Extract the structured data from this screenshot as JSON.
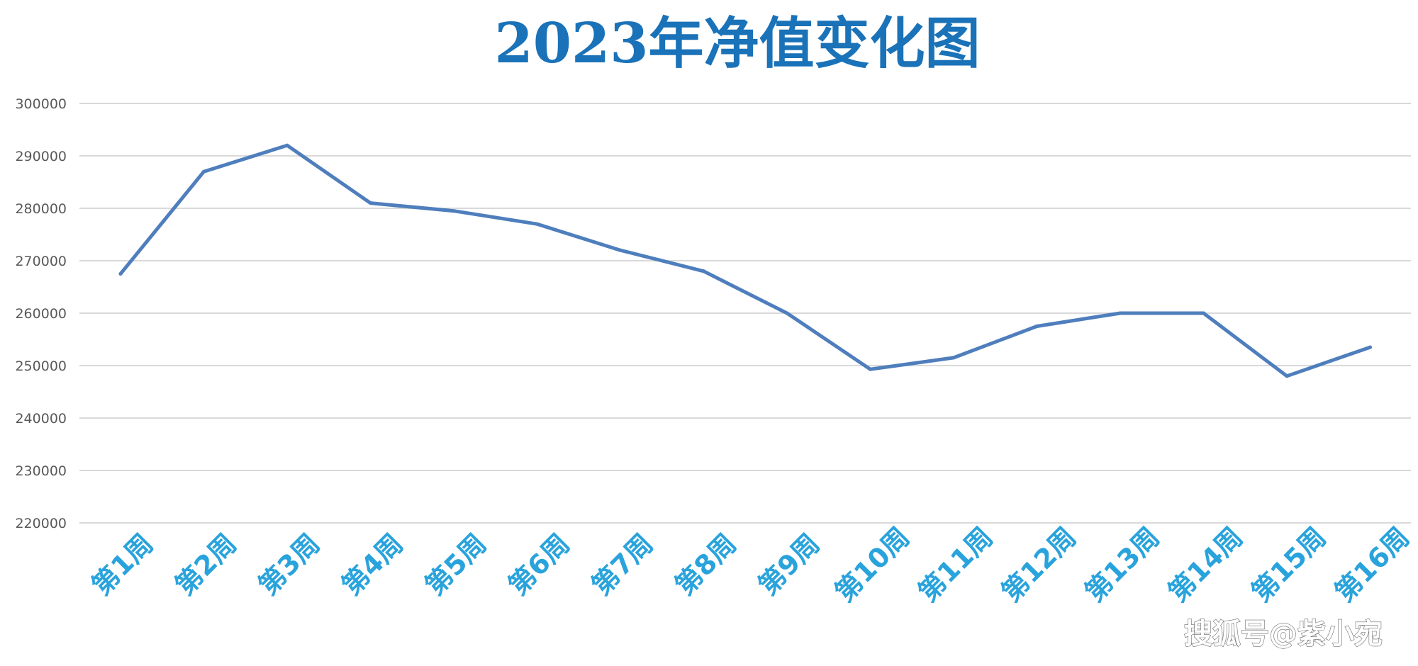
{
  "chart_data": {
    "type": "line",
    "title": "2023年净值变化图",
    "xlabel": "",
    "ylabel": "",
    "categories": [
      "第1周",
      "第2周",
      "第3周",
      "第4周",
      "第5周",
      "第6周",
      "第7周",
      "第8周",
      "第9周",
      "第10周",
      "第11周",
      "第12周",
      "第13周",
      "第14周",
      "第15周",
      "第16周"
    ],
    "series": [
      {
        "values": [
          267500,
          287000,
          292000,
          281000,
          279500,
          277000,
          272000,
          268000,
          260000,
          249300,
          251500,
          257500,
          260000,
          260000,
          248000,
          253500
        ]
      }
    ],
    "ylim": [
      220000,
      300000
    ],
    "yticks": [
      "300000",
      "290000",
      "280000",
      "270000",
      "260000",
      "250000",
      "240000",
      "230000",
      "220000"
    ],
    "grid": true,
    "legend": "none",
    "colors": {
      "line": "#4f7ebd",
      "grid": "#d9d9d9",
      "title": "#1a72b8",
      "x_labels": "#29a3dc",
      "y_labels": "#595959"
    }
  },
  "watermark": "搜狐号@紫小宛"
}
